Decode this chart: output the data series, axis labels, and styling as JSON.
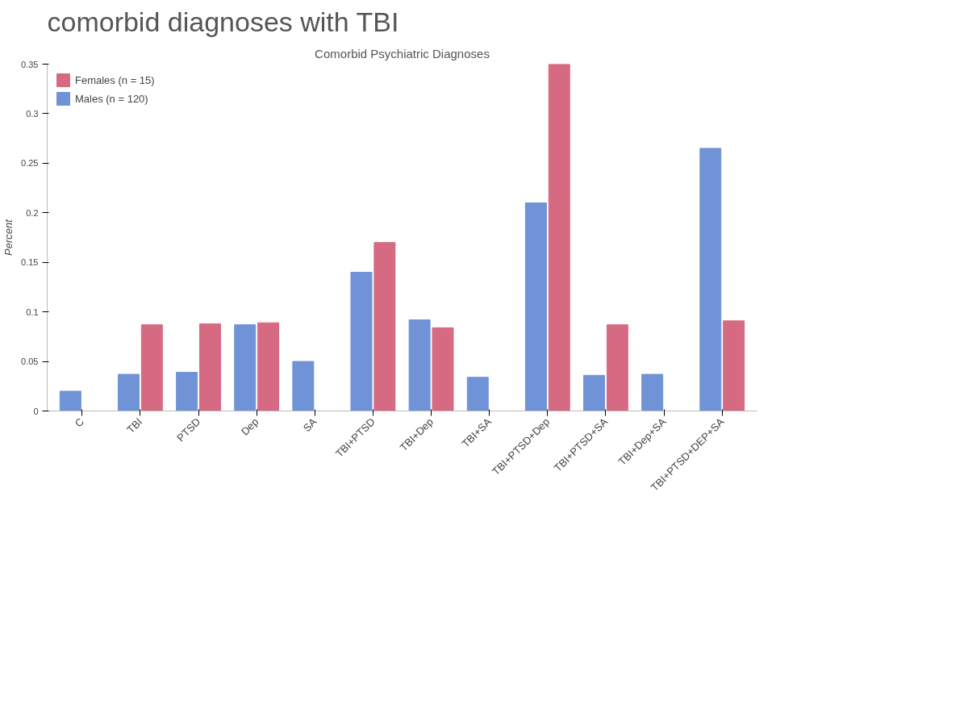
{
  "chart_data": {
    "type": "bar",
    "title": "comorbid diagnoses with TBI",
    "subtitle": "Comorbid Psychiatric Diagnoses",
    "ylabel": "Percent",
    "categories": [
      "C",
      "TBI",
      "PTSD",
      "Dep",
      "SA",
      "TBI+PTSD",
      "TBI+Dep",
      "TBI+SA",
      "TBI+PTSD+Dep",
      "TBI+PTSD+SA",
      "TBI+Dep+SA",
      "TBI+PTSD+DEP+SA"
    ],
    "series": [
      {
        "name": "Males (n = 120)",
        "color": "#6f93d6",
        "values": [
          0.02,
          0.037,
          0.039,
          0.087,
          0.05,
          0.14,
          0.092,
          0.034,
          0.21,
          0.036,
          0.037,
          0.265
        ]
      },
      {
        "name": "Females (n = 15)",
        "color": "#d66a82",
        "values": [
          null,
          0.087,
          0.088,
          0.089,
          null,
          0.17,
          0.084,
          null,
          0.35,
          0.087,
          null,
          0.091
        ]
      }
    ],
    "ylim": [
      0,
      0.35
    ],
    "yticks": [
      0,
      0.05,
      0.1,
      0.15,
      0.2,
      0.25,
      0.3,
      0.35
    ],
    "grid": false,
    "legend": "top left"
  }
}
